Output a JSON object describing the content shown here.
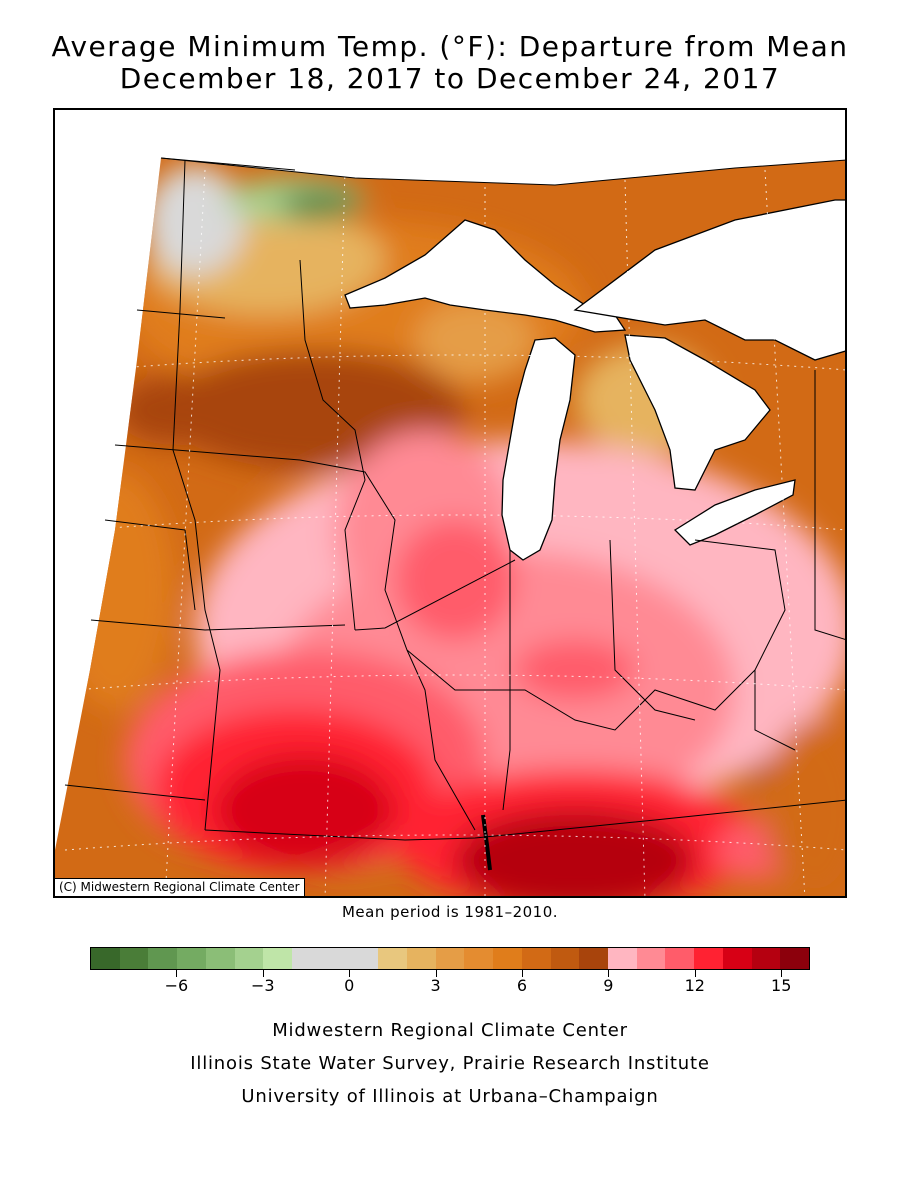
{
  "title_line1": "Average Minimum Temp. (°F): Departure from Mean",
  "title_line2": "December 18, 2017 to December 24, 2017",
  "credit": "(C) Midwestern Regional Climate Center",
  "mean_period": "Mean period is 1981–2010.",
  "legend": {
    "bins": [
      {
        "from": -9,
        "to": -8,
        "color": "#38682a"
      },
      {
        "from": -8,
        "to": -7,
        "color": "#4a7d38"
      },
      {
        "from": -7,
        "to": -6,
        "color": "#609750"
      },
      {
        "from": -6,
        "to": -5,
        "color": "#74ab62"
      },
      {
        "from": -5,
        "to": -4,
        "color": "#8bbe77"
      },
      {
        "from": -4,
        "to": -3,
        "color": "#a4d18f"
      },
      {
        "from": -3,
        "to": -2,
        "color": "#bfe5a8"
      },
      {
        "from": -2,
        "to": -1,
        "color": "#d9d9d9"
      },
      {
        "from": -1,
        "to": 0,
        "color": "#d9d9d9"
      },
      {
        "from": 0,
        "to": 1,
        "color": "#d9d9d9"
      },
      {
        "from": 1,
        "to": 2,
        "color": "#e8c77e"
      },
      {
        "from": 2,
        "to": 3,
        "color": "#e6b35f"
      },
      {
        "from": 3,
        "to": 4,
        "color": "#e59d46"
      },
      {
        "from": 4,
        "to": 5,
        "color": "#e48c30"
      },
      {
        "from": 5,
        "to": 6,
        "color": "#e07d1b"
      },
      {
        "from": 6,
        "to": 7,
        "color": "#d26a15"
      },
      {
        "from": 7,
        "to": 8,
        "color": "#c05a10"
      },
      {
        "from": 8,
        "to": 9,
        "color": "#a8440c"
      },
      {
        "from": 9,
        "to": 10,
        "color": "#ffb6c1"
      },
      {
        "from": 10,
        "to": 11,
        "color": "#ff8a94"
      },
      {
        "from": 11,
        "to": 12,
        "color": "#ff5c6a"
      },
      {
        "from": 12,
        "to": 13,
        "color": "#ff2232"
      },
      {
        "from": 13,
        "to": 14,
        "color": "#d70015"
      },
      {
        "from": 14,
        "to": 15,
        "color": "#b50010"
      },
      {
        "from": 15,
        "to": 16,
        "color": "#8c000c"
      }
    ],
    "min": -9,
    "max": 16,
    "tick_values": [
      -6,
      -3,
      0,
      3,
      6,
      9,
      12,
      15
    ],
    "tick_labels": [
      "−6",
      "−3",
      "0",
      "3",
      "6",
      "9",
      "12",
      "15"
    ]
  },
  "footer": {
    "line1": "Midwestern Regional Climate Center",
    "line2": "Illinois State Water Survey, Prairie Research Institute",
    "line3": "University of Illinois at Urbana–Champaign"
  }
}
